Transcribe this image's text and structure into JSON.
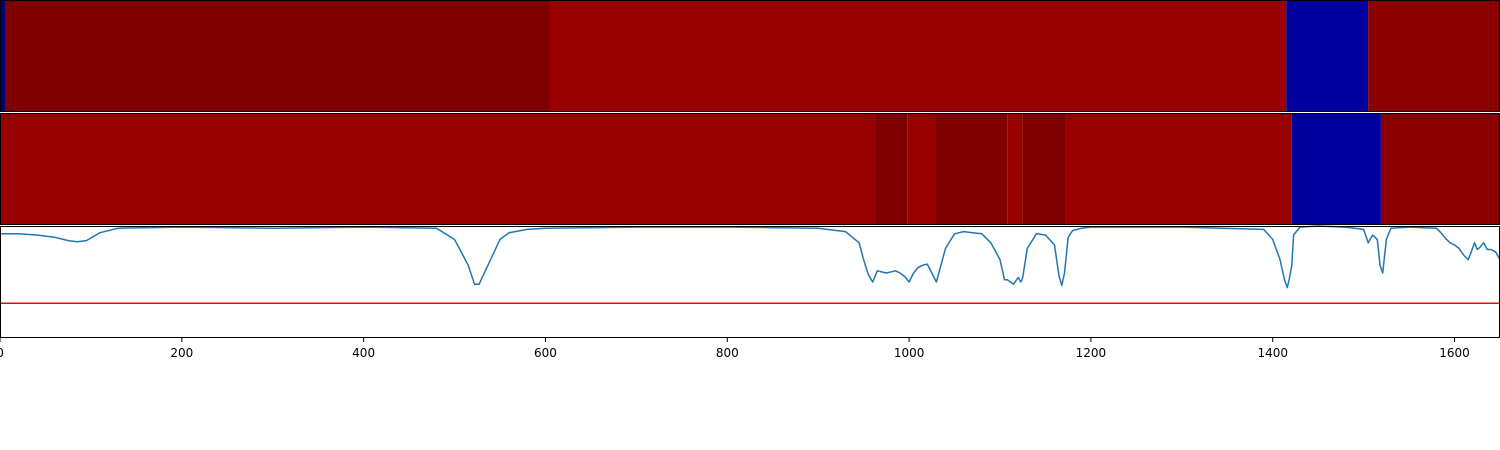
{
  "chart_data": [
    {
      "type": "heatmap",
      "xlim": [
        0,
        1650
      ],
      "segments": [
        {
          "x0": 0,
          "x1": 6,
          "color": "#00007f"
        },
        {
          "x0": 6,
          "x1": 605,
          "color": "#7f0000"
        },
        {
          "x0": 605,
          "x1": 1415,
          "color": "#990000"
        },
        {
          "x0": 1415,
          "x1": 1505,
          "color": "#0000a0"
        },
        {
          "x0": 1505,
          "x1": 1650,
          "color": "#8a0000"
        }
      ]
    },
    {
      "type": "heatmap",
      "xlim": [
        0,
        1650
      ],
      "segments": [
        {
          "x0": 0,
          "x1": 963,
          "color": "#990000"
        },
        {
          "x0": 963,
          "x1": 998,
          "color": "#7f0000"
        },
        {
          "x0": 998,
          "x1": 1029,
          "color": "#990000"
        },
        {
          "x0": 1029,
          "x1": 1108,
          "color": "#7f0000"
        },
        {
          "x0": 1108,
          "x1": 1125,
          "color": "#990000"
        },
        {
          "x0": 1125,
          "x1": 1172,
          "color": "#7f0000"
        },
        {
          "x0": 1172,
          "x1": 1421,
          "color": "#990000"
        },
        {
          "x0": 1421,
          "x1": 1519,
          "color": "#0000a0"
        },
        {
          "x0": 1519,
          "x1": 1650,
          "color": "#8a0000"
        }
      ]
    },
    {
      "type": "line",
      "xlim": [
        0,
        1650
      ],
      "ylim": [
        0,
        1
      ],
      "xticks": [
        0,
        200,
        400,
        600,
        800,
        1000,
        1200,
        1400,
        1600
      ],
      "series": [
        {
          "color": "#1f77b4",
          "x": [
            0,
            20,
            40,
            60,
            75,
            85,
            95,
            110,
            130,
            200,
            300,
            400,
            480,
            500,
            515,
            522,
            527,
            535,
            550,
            560,
            580,
            600,
            700,
            800,
            900,
            930,
            945,
            950,
            955,
            960,
            965,
            975,
            985,
            990,
            995,
            1000,
            1005,
            1010,
            1015,
            1020,
            1025,
            1030,
            1040,
            1050,
            1060,
            1070,
            1080,
            1090,
            1100,
            1105,
            1108,
            1115,
            1120,
            1123,
            1125,
            1130,
            1140,
            1150,
            1160,
            1165,
            1168,
            1171,
            1175,
            1180,
            1190,
            1200,
            1300,
            1390,
            1400,
            1408,
            1413,
            1416,
            1418,
            1421,
            1423,
            1430,
            1450,
            1480,
            1500,
            1505,
            1510,
            1515,
            1518,
            1521,
            1525,
            1530,
            1550,
            1580,
            1585,
            1590,
            1595,
            1600,
            1605,
            1610,
            1615,
            1618,
            1622,
            1625,
            1628,
            1632,
            1636,
            1640,
            1645,
            1650
          ],
          "y": [
            0.93,
            0.93,
            0.92,
            0.9,
            0.87,
            0.86,
            0.87,
            0.94,
            0.98,
            0.99,
            0.98,
            0.99,
            0.98,
            0.88,
            0.65,
            0.48,
            0.48,
            0.62,
            0.88,
            0.94,
            0.97,
            0.98,
            0.99,
            0.99,
            0.98,
            0.95,
            0.85,
            0.7,
            0.57,
            0.5,
            0.6,
            0.58,
            0.6,
            0.58,
            0.55,
            0.5,
            0.58,
            0.63,
            0.65,
            0.66,
            0.58,
            0.5,
            0.8,
            0.93,
            0.95,
            0.94,
            0.93,
            0.85,
            0.7,
            0.52,
            0.52,
            0.48,
            0.54,
            0.5,
            0.54,
            0.8,
            0.93,
            0.92,
            0.83,
            0.55,
            0.47,
            0.58,
            0.9,
            0.96,
            0.98,
            0.99,
            0.99,
            0.97,
            0.88,
            0.7,
            0.52,
            0.45,
            0.52,
            0.65,
            0.92,
            0.99,
            1.0,
            0.99,
            0.97,
            0.85,
            0.92,
            0.88,
            0.65,
            0.58,
            0.88,
            0.98,
            0.99,
            0.98,
            0.94,
            0.89,
            0.85,
            0.83,
            0.8,
            0.74,
            0.7,
            0.76,
            0.85,
            0.79,
            0.81,
            0.85,
            0.79,
            0.79,
            0.77,
            0.7
          ]
        },
        {
          "color": "#ff0000",
          "x": [
            0,
            1650
          ],
          "y": [
            0.31,
            0.31
          ]
        }
      ]
    }
  ]
}
